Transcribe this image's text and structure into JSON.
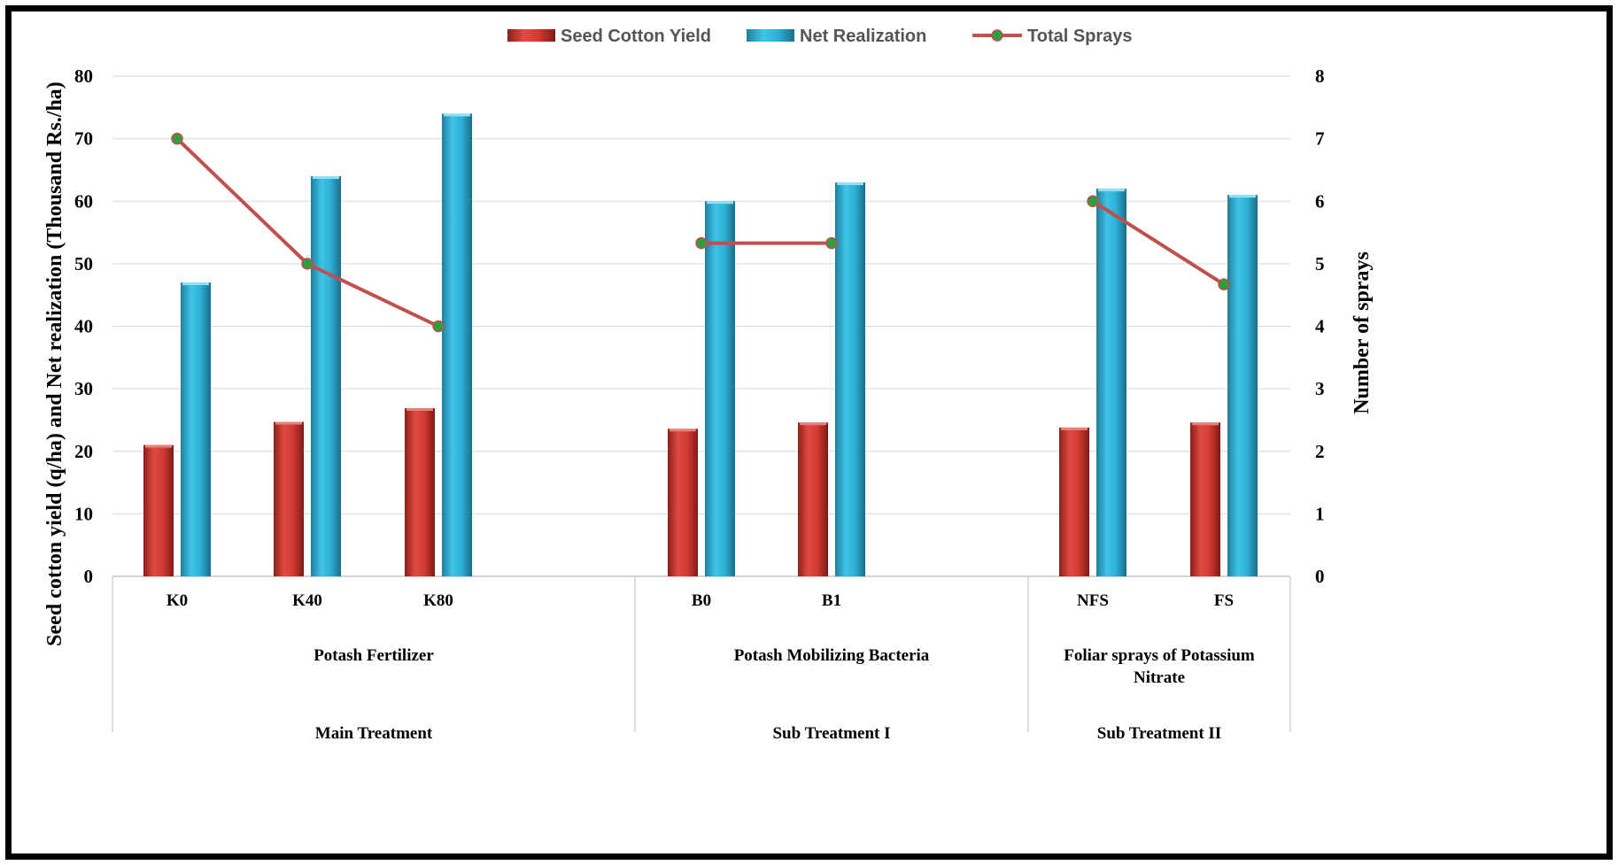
{
  "chart_data": {
    "type": "bar",
    "categories": [
      "K0",
      "K40",
      "K80",
      "B0",
      "B1",
      "NFS",
      "FS"
    ],
    "groups": [
      {
        "label": "Potash Fertilizer",
        "label_lines": [
          "Potash Fertilizer"
        ],
        "level2": "Main Treatment",
        "categories": [
          "K0",
          "K40",
          "K80"
        ]
      },
      {
        "label": "Potash Mobilizing Bacteria",
        "label_lines": [
          "Potash Mobilizing Bacteria"
        ],
        "level2": "Sub Treatment I",
        "categories": [
          "B0",
          "B1"
        ]
      },
      {
        "label": "Foliar sprays of Potassium Nitrate",
        "label_lines": [
          "Foliar sprays of Potassium",
          "Nitrate"
        ],
        "level2": "Sub Treatment II",
        "categories": [
          "NFS",
          "FS"
        ]
      }
    ],
    "series": [
      {
        "name": "Seed Cotton Yield",
        "type": "bar",
        "axis": "left",
        "color": "#c0392b",
        "values": [
          21.0,
          24.7,
          26.9,
          23.6,
          24.6,
          23.8,
          24.6
        ]
      },
      {
        "name": "Net Realization",
        "type": "bar",
        "axis": "left",
        "color": "#31b0d5",
        "values": [
          47,
          64,
          74,
          60,
          63,
          62,
          61
        ]
      },
      {
        "name": "Total Sprays",
        "type": "line",
        "axis": "right",
        "color": "#c0504d",
        "marker_color": "#2e9e3e",
        "values": [
          7,
          5,
          4,
          5.33,
          5.33,
          6,
          4.67
        ]
      }
    ],
    "ylabel": "Seed cotton yield (q/ha) and Net realization (Thousand  Rs./ha)",
    "y2label": "Number of sprays",
    "ylim": [
      0,
      80
    ],
    "y2lim": [
      0,
      8
    ],
    "yticks": [
      0,
      10,
      20,
      30,
      40,
      50,
      60,
      70,
      80
    ],
    "y2ticks": [
      0,
      1,
      2,
      3,
      4,
      5,
      6,
      7,
      8
    ],
    "grid": true,
    "legend_position": "top-center"
  }
}
